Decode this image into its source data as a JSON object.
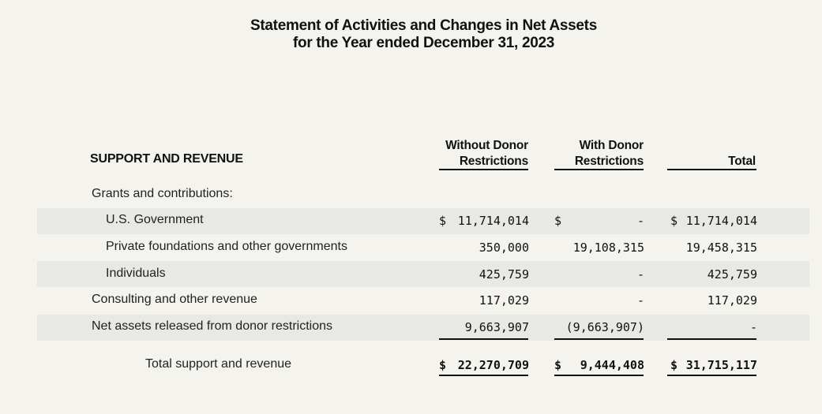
{
  "title": {
    "line1": "Statement of Activities and Changes in Net Assets",
    "line2": "for the Year ended December 31, 2023"
  },
  "section_heading": "SUPPORT AND REVENUE",
  "columns": {
    "without": [
      "Without Donor",
      "Restrictions"
    ],
    "with": [
      "With Donor",
      "Restrictions"
    ],
    "total": "Total"
  },
  "group_label": "Grants and contributions:",
  "rows": [
    {
      "label": "U.S. Government",
      "without": "11,714,014",
      "with": "-",
      "total": "11,714,014",
      "dollar": "$"
    },
    {
      "label": "Private foundations and other governments",
      "without": "350,000",
      "with": "19,108,315",
      "total": "19,458,315"
    },
    {
      "label": "Individuals",
      "without": "425,759",
      "with": "-",
      "total": "425,759"
    },
    {
      "label": "Consulting and other revenue",
      "without": "117,029",
      "with": "-",
      "total": "117,029"
    },
    {
      "label": "Net assets released from donor restrictions",
      "without": "9,663,907",
      "with": "(9,663,907)",
      "total": "-"
    }
  ],
  "totals": {
    "label": "Total support and revenue",
    "without": "22,270,709",
    "with": "9,444,408",
    "total": "31,715,117",
    "dollar": "$"
  }
}
